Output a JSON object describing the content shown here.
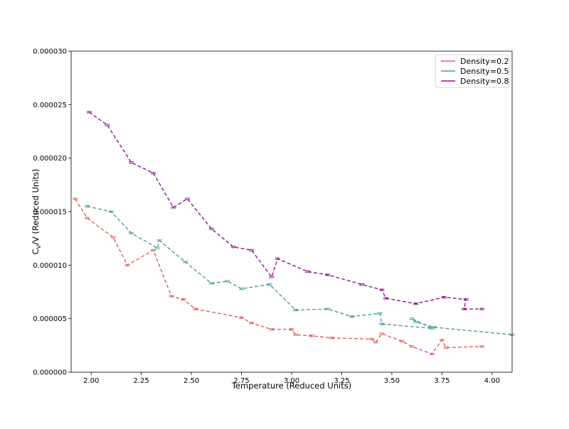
{
  "chart_data": {
    "type": "line",
    "title": "",
    "xlabel": "Temperature (Reduced Units)",
    "ylabel": {
      "main": "C",
      "sub": "V",
      "rest": "/V (Reduced Units)"
    },
    "xlim": [
      1.9,
      4.1
    ],
    "ylim": [
      0,
      3e-05
    ],
    "xticks": [
      2.0,
      2.25,
      2.5,
      2.75,
      3.0,
      3.25,
      3.5,
      3.75,
      4.0
    ],
    "xtick_labels": [
      "2.00",
      "2.25",
      "2.50",
      "2.75",
      "3.00",
      "3.25",
      "3.50",
      "3.75",
      "4.00"
    ],
    "yticks": [
      0,
      5e-06,
      1e-05,
      1.5e-05,
      2e-05,
      2.5e-05,
      3e-05
    ],
    "ytick_labels": [
      "0.000000",
      "0.000005",
      "0.000010",
      "0.000015",
      "0.000020",
      "0.000025",
      "0.000030"
    ],
    "grid": false,
    "legend_position": "top-right",
    "series": [
      {
        "name": "Density=0.2",
        "color": "#e0615e",
        "line_style": "dashed",
        "x": [
          1.92,
          1.98,
          2.11,
          2.18,
          2.31,
          2.4,
          2.46,
          2.52,
          2.75,
          2.8,
          2.9,
          3.0,
          3.02,
          3.1,
          3.2,
          3.4,
          3.42,
          3.45,
          3.55,
          3.6,
          3.7,
          3.75,
          3.77,
          3.95
        ],
        "y": [
          1.62e-05,
          1.44e-05,
          1.26e-05,
          1e-05,
          1.14e-05,
          7.1e-06,
          6.8e-06,
          5.9e-06,
          5.1e-06,
          4.6e-06,
          4e-06,
          4e-06,
          3.5e-06,
          3.4e-06,
          3.2e-06,
          3.1e-06,
          2.8e-06,
          3.6e-06,
          2.9e-06,
          2.4e-06,
          1.7e-06,
          3e-06,
          2.3e-06,
          2.4e-06
        ]
      },
      {
        "name": "Density=0.5",
        "color": "#4f9e9e",
        "line_style": "dashed",
        "x": [
          1.98,
          2.1,
          2.2,
          2.33,
          2.34,
          2.47,
          2.6,
          2.68,
          2.75,
          2.89,
          3.02,
          3.18,
          3.3,
          3.44,
          3.45,
          3.7,
          3.6,
          3.62,
          3.71,
          4.1
        ],
        "y": [
          1.55e-05,
          1.5e-05,
          1.3e-05,
          1.16e-05,
          1.23e-05,
          1.03e-05,
          8.3e-06,
          8.5e-06,
          7.8e-06,
          8.2e-06,
          5.8e-06,
          5.9e-06,
          5.2e-06,
          5.5e-06,
          4.5e-06,
          4.1e-06,
          5e-06,
          4.7e-06,
          4.2e-06,
          3.5e-06
        ]
      },
      {
        "name": "Density=0.8",
        "color": "#8b1a8b",
        "line_style": "dashed",
        "x": [
          1.99,
          2.08,
          2.2,
          2.31,
          2.41,
          2.48,
          2.6,
          2.71,
          2.8,
          2.9,
          2.93,
          3.08,
          3.18,
          3.35,
          3.45,
          3.47,
          3.62,
          3.76,
          3.87,
          3.86,
          3.95
        ],
        "y": [
          2.43e-05,
          2.31e-05,
          1.96e-05,
          1.86e-05,
          1.54e-05,
          1.62e-05,
          1.34e-05,
          1.17e-05,
          1.14e-05,
          8.9e-06,
          1.06e-05,
          9.4e-06,
          9.1e-06,
          8.2e-06,
          7.7e-06,
          6.9e-06,
          6.4e-06,
          7e-06,
          6.8e-06,
          5.9e-06,
          5.9e-06
        ]
      }
    ]
  }
}
